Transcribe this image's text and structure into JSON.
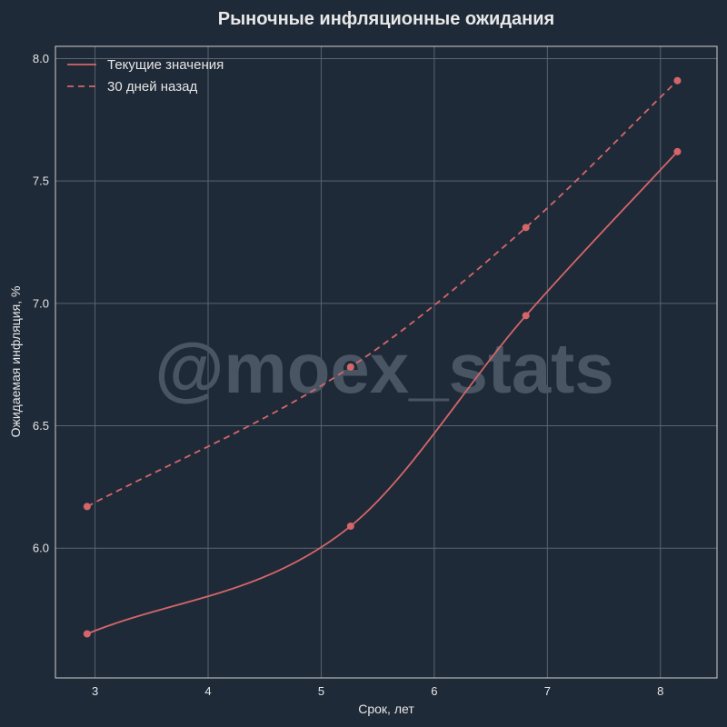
{
  "watermark": "@moex_stats",
  "chart_data": {
    "type": "line",
    "title": "Рыночные инфляционные ожидания",
    "xlabel": "Срок, лет",
    "ylabel": "Ожидаемая инфляция, %",
    "xlim": [
      2.65,
      8.5
    ],
    "ylim": [
      5.47,
      8.05
    ],
    "xticks": [
      "3",
      "4",
      "5",
      "6",
      "7",
      "8"
    ],
    "yticks": [
      "6.0",
      "6.5",
      "7.0",
      "7.5",
      "8.0"
    ],
    "grid": true,
    "legend_position": "top-left",
    "series": [
      {
        "name": "Текущие значения",
        "style": "solid",
        "color": "#d4666a",
        "points": [
          [
            2.93,
            5.65
          ],
          [
            5.26,
            6.09
          ],
          [
            6.81,
            6.95
          ],
          [
            8.15,
            7.62
          ]
        ]
      },
      {
        "name": "30 дней назад",
        "style": "dashed",
        "color": "#d4666a",
        "points": [
          [
            2.93,
            6.17
          ],
          [
            5.26,
            6.74
          ],
          [
            6.81,
            7.31
          ],
          [
            8.15,
            7.91
          ]
        ]
      }
    ]
  }
}
